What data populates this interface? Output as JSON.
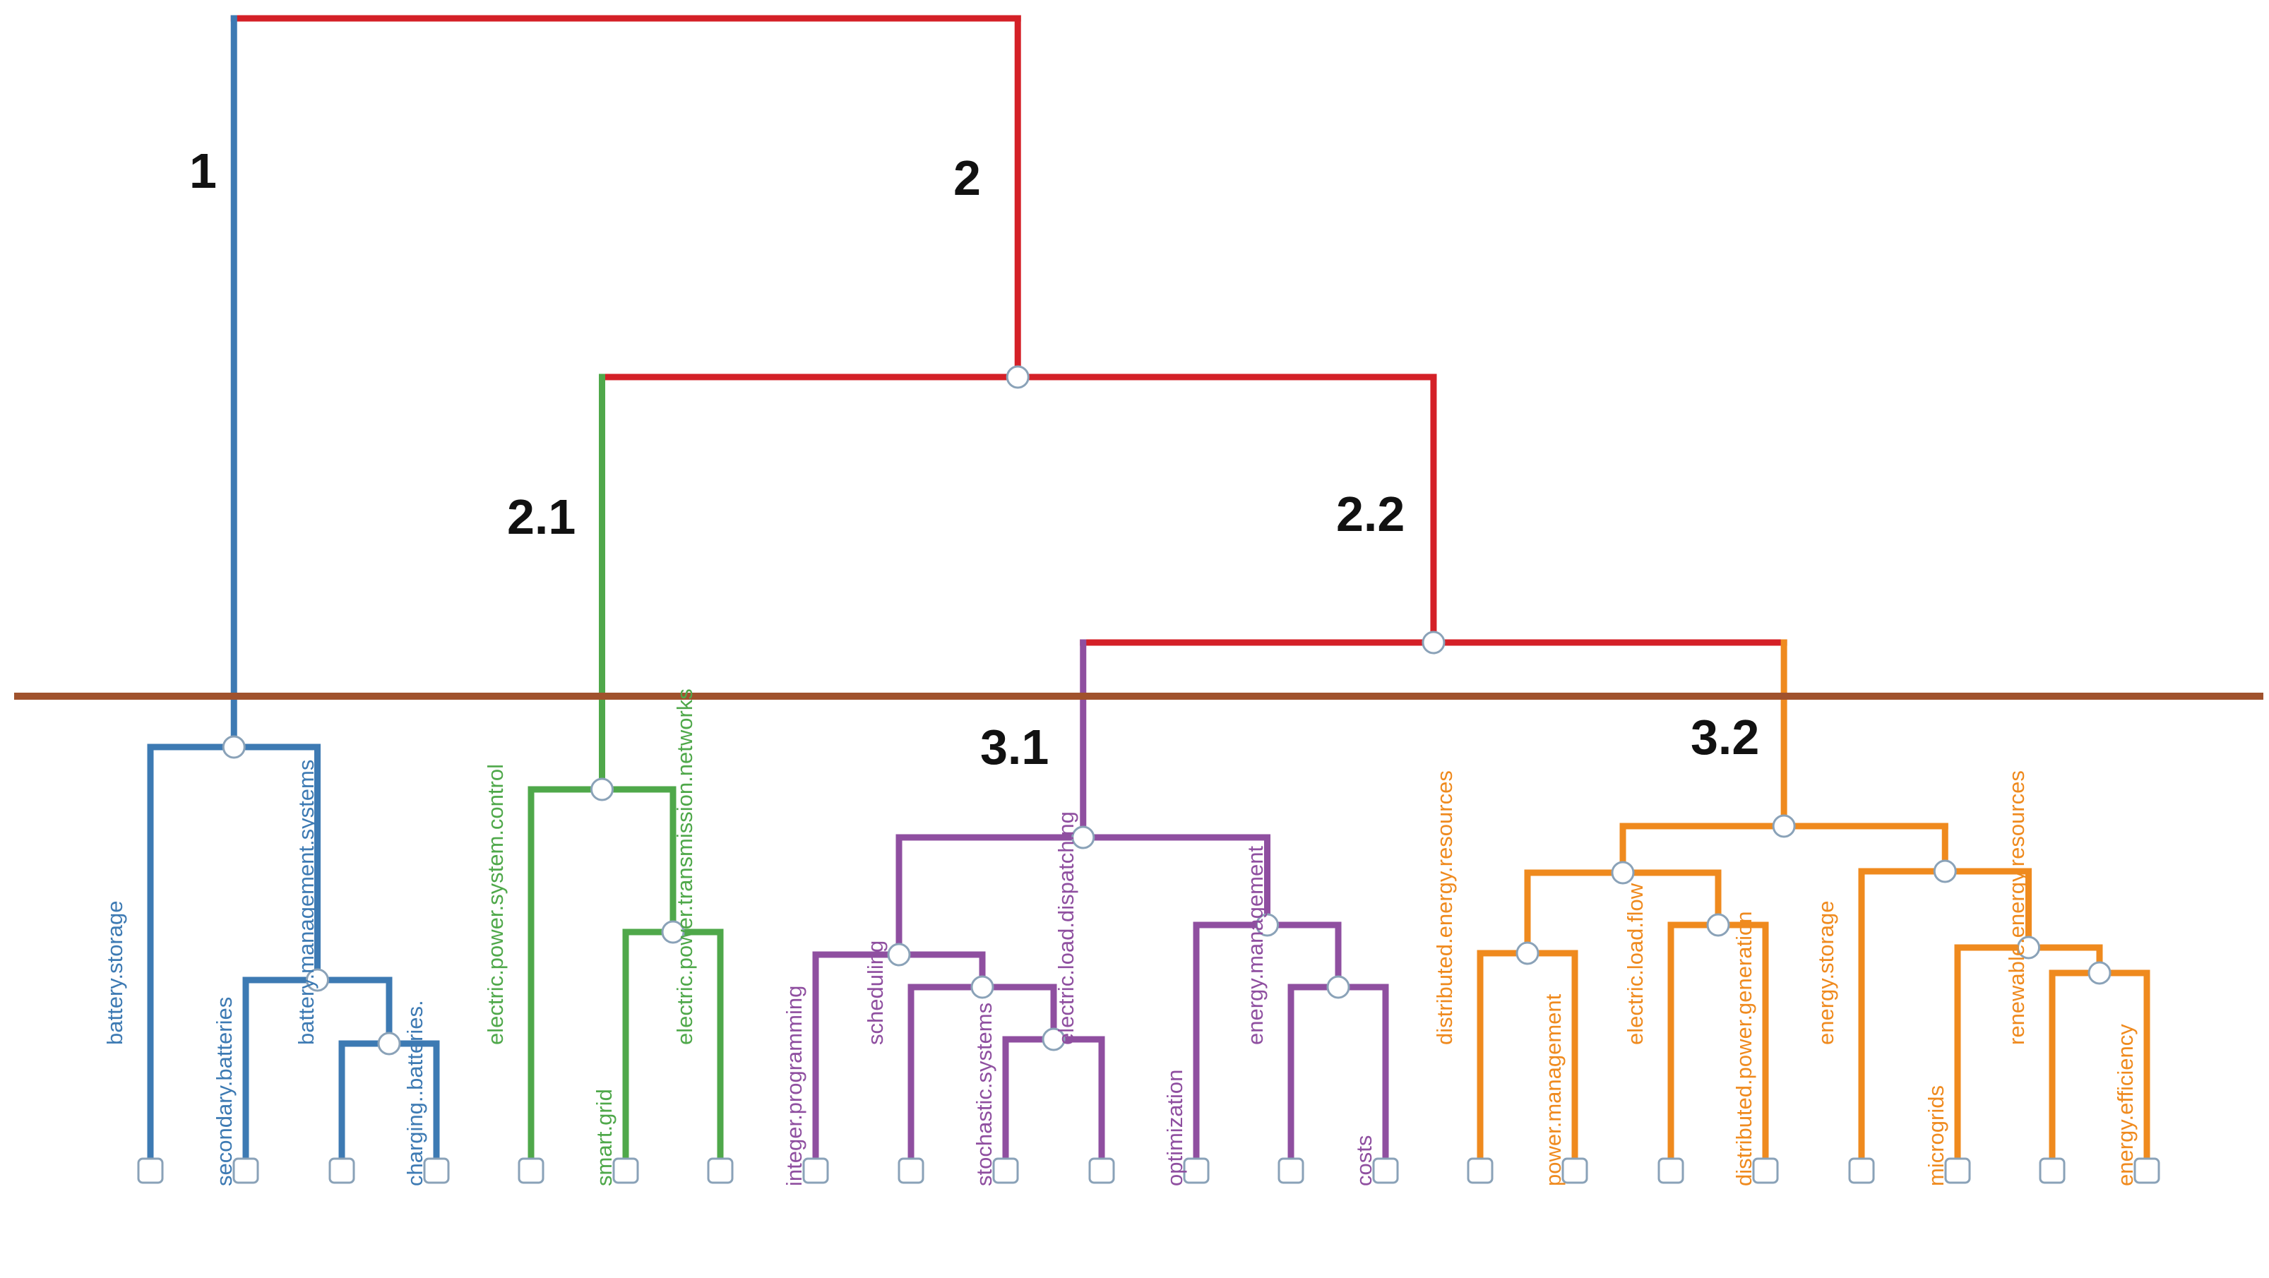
{
  "colors": {
    "root": "#d42027",
    "blue": "#3d7ab3",
    "green": "#4fa84a",
    "purple": "#8f4fa0",
    "orange": "#ef8a1e",
    "cut": "#a0522d",
    "node_fill": "#ffffff",
    "node_stroke": "#8aa2b8"
  },
  "clusters": [
    {
      "id": "c1",
      "label": "1"
    },
    {
      "id": "c2",
      "label": "2"
    },
    {
      "id": "c21",
      "label": "2.1"
    },
    {
      "id": "c22",
      "label": "2.2"
    },
    {
      "id": "c31",
      "label": "3.1"
    },
    {
      "id": "c32",
      "label": "3.2"
    }
  ],
  "leaves": [
    {
      "label": "battery.storage",
      "color": "blue"
    },
    {
      "label": "secondary.batteries",
      "color": "blue"
    },
    {
      "label": "battery.management.systems",
      "color": "blue"
    },
    {
      "label": "charging..batteries.",
      "color": "blue"
    },
    {
      "label": "electric.power.system.control",
      "color": "green"
    },
    {
      "label": "smart.grid",
      "color": "green"
    },
    {
      "label": "electric.power.transmission.networks",
      "color": "green"
    },
    {
      "label": "integer.programming",
      "color": "purple"
    },
    {
      "label": "scheduling",
      "color": "purple"
    },
    {
      "label": "stochastic.systems",
      "color": "purple"
    },
    {
      "label": "electric.load.dispatching",
      "color": "purple"
    },
    {
      "label": "optimization",
      "color": "purple"
    },
    {
      "label": "energy.management",
      "color": "purple"
    },
    {
      "label": "costs",
      "color": "purple"
    },
    {
      "label": "distributed.energy.resources",
      "color": "orange"
    },
    {
      "label": "power.management",
      "color": "orange"
    },
    {
      "label": "electric.load.flow",
      "color": "orange"
    },
    {
      "label": "distributed.power.generation",
      "color": "orange"
    },
    {
      "label": "energy.storage",
      "color": "orange"
    },
    {
      "label": "microgrids",
      "color": "orange"
    },
    {
      "label": "renewable.energy.resources",
      "color": "orange"
    },
    {
      "label": "energy.efficiency",
      "color": "orange"
    }
  ]
}
